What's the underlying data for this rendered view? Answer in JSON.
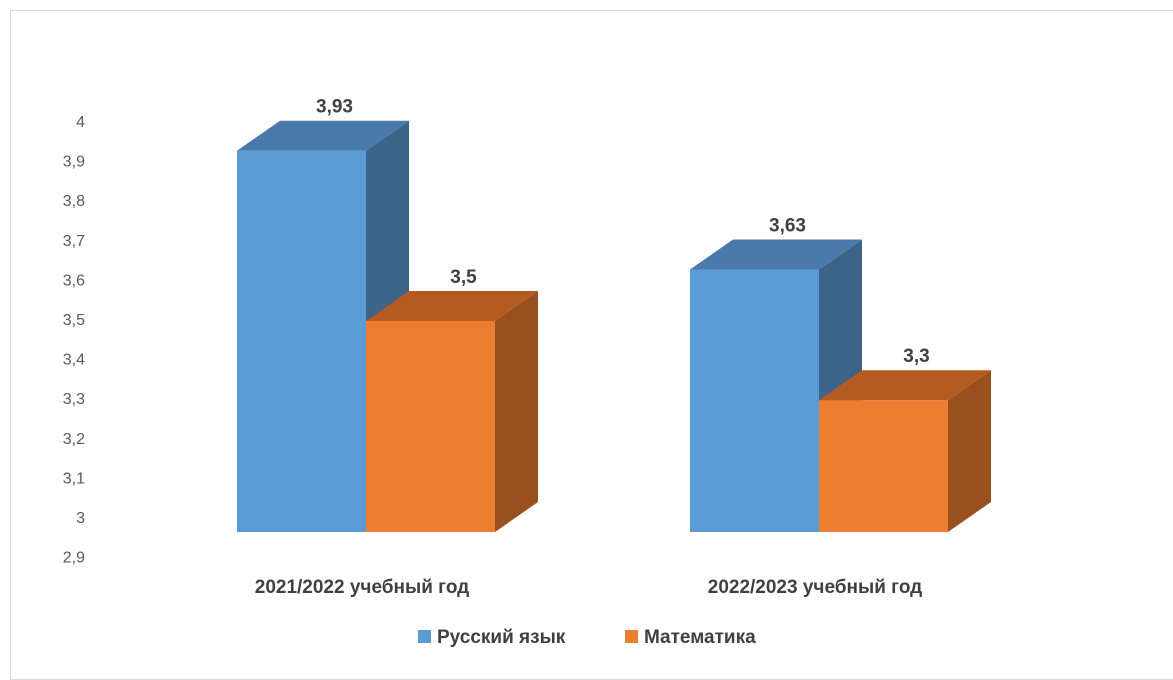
{
  "chart_data": {
    "type": "bar",
    "style": "3d-clustered-column",
    "categories": [
      "2021/2022 учебный год",
      "2022/2023 учебный год"
    ],
    "series": [
      {
        "name": "Русский язык",
        "values": [
          3.93,
          3.63
        ],
        "labels": [
          "3,93",
          "3,63"
        ],
        "color": "#5b9bd5",
        "side_color": "#3d6389",
        "top_color": "#4a7aab"
      },
      {
        "name": "Математика",
        "values": [
          3.5,
          3.3
        ],
        "labels": [
          "3,5",
          "3,3"
        ],
        "color": "#ed7d31",
        "side_color": "#9a4f1e",
        "top_color": "#b45b22"
      }
    ],
    "ylim": [
      2.9,
      4.0
    ],
    "yticks": [
      {
        "value": 4.0,
        "label": "4"
      },
      {
        "value": 3.9,
        "label": "3,9"
      },
      {
        "value": 3.8,
        "label": "3,8"
      },
      {
        "value": 3.7,
        "label": "3,7"
      },
      {
        "value": 3.6,
        "label": "3,6"
      },
      {
        "value": 3.5,
        "label": "3,5"
      },
      {
        "value": 3.4,
        "label": "3,4"
      },
      {
        "value": 3.3,
        "label": "3,3"
      },
      {
        "value": 3.2,
        "label": "3,2"
      },
      {
        "value": 3.1,
        "label": "3,1"
      },
      {
        "value": 3.0,
        "label": "3"
      },
      {
        "value": 2.9,
        "label": "2,9"
      }
    ],
    "grid": false,
    "legend_position": "bottom"
  }
}
